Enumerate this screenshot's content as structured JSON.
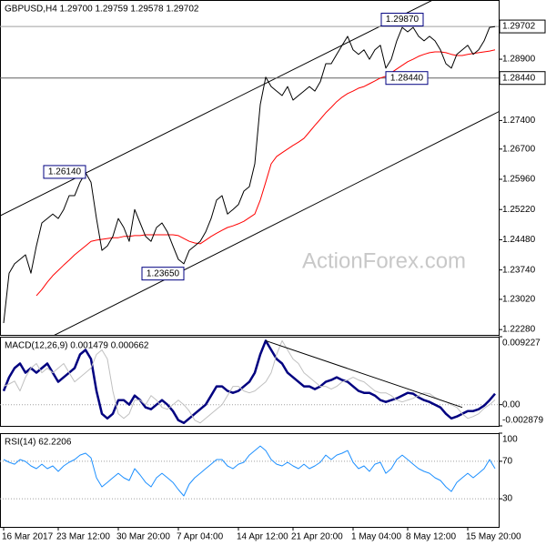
{
  "chart_data": [
    {
      "type": "line",
      "title": "GBPUSD,H4  1.29700 1.29759 1.29578 1.29702",
      "ylim": [
        1.2215,
        1.3035
      ],
      "yticks": [
        {
          "value": 1.289,
          "label": "1.28900"
        },
        {
          "value": 1.274,
          "label": "1.27400"
        },
        {
          "value": 1.267,
          "label": "1.26700"
        },
        {
          "value": 1.2596,
          "label": "1.25960"
        },
        {
          "value": 1.2522,
          "label": "1.25220"
        },
        {
          "value": 1.2448,
          "label": "1.24480"
        },
        {
          "value": 1.2374,
          "label": "1.23740"
        },
        {
          "value": 1.2302,
          "label": "1.23020"
        },
        {
          "value": 1.2228,
          "label": "1.22280"
        }
      ],
      "grid": false,
      "series": [
        {
          "color": "#000000",
          "values": [
            1.2244,
            1.2366,
            1.2389,
            1.24,
            1.2411,
            1.2366,
            1.2433,
            1.2489,
            1.25,
            1.2511,
            1.25,
            1.2522,
            1.2556,
            1.2556,
            1.2589,
            1.2612,
            1.2589,
            1.25,
            1.2422,
            1.2433,
            1.2456,
            1.25,
            1.2478,
            1.2444,
            1.2522,
            1.2489,
            1.2456,
            1.2444,
            1.2478,
            1.2489,
            1.2467,
            1.2433,
            1.24,
            1.2389,
            1.2422,
            1.2433,
            1.2444,
            1.2467,
            1.25,
            1.2545,
            1.2556,
            1.2511,
            1.2522,
            1.2534,
            1.2567,
            1.2578,
            1.2634,
            1.2779,
            1.2846,
            1.2823,
            1.2812,
            1.2801,
            1.2823,
            1.279,
            1.2801,
            1.2812,
            1.2823,
            1.2812,
            1.2835,
            1.2879,
            1.2879,
            1.2902,
            1.2924,
            1.2946,
            1.2913,
            1.2902,
            1.2913,
            1.289,
            1.2913,
            1.2924,
            1.2868,
            1.289,
            1.2935,
            1.2968,
            1.2957,
            1.2968,
            1.2946,
            1.2935,
            1.2946,
            1.2935,
            1.2913,
            1.2879,
            1.2868,
            1.2902,
            1.2913,
            1.2924,
            1.2902,
            1.2913,
            1.2935,
            1.2968,
            1.297
          ]
        },
        {
          "color": "#ff0000",
          "values": [
            null,
            null,
            null,
            null,
            null,
            null,
            1.2311,
            1.2326,
            1.2344,
            1.236,
            1.2373,
            1.2386,
            1.2398,
            1.2411,
            1.2422,
            1.2433,
            1.2444,
            1.2447,
            1.2449,
            1.2451,
            1.2453,
            1.2453,
            1.2456,
            1.2456,
            1.2458,
            1.2458,
            1.246,
            1.246,
            1.246,
            1.246,
            1.246,
            1.246,
            1.2458,
            1.2451,
            1.2444,
            1.244,
            1.2438,
            1.2447,
            1.2456,
            1.2464,
            1.2471,
            1.2478,
            1.2482,
            1.2487,
            1.2493,
            1.2502,
            1.2511,
            1.2545,
            1.2589,
            1.2634,
            1.2652,
            1.2661,
            1.267,
            1.2679,
            1.2687,
            1.2696,
            1.2712,
            1.2728,
            1.2743,
            1.2759,
            1.2772,
            1.2786,
            1.2797,
            1.2806,
            1.2812,
            1.2819,
            1.2823,
            1.283,
            1.2837,
            1.2844,
            1.2848,
            1.2857,
            1.2866,
            1.2875,
            1.2884,
            1.289,
            1.2897,
            1.2902,
            1.2906,
            1.2908,
            1.2908,
            1.2906,
            1.2902,
            1.2899,
            1.2899,
            1.2902,
            1.2904,
            1.2906,
            1.2908,
            1.291,
            1.2913
          ]
        }
      ],
      "price_labels": [
        {
          "value": 1.29702,
          "label": "1.29702",
          "color": "#a0a0a0"
        },
        {
          "value": 1.2844,
          "label": "1.28440",
          "color": "#606060"
        }
      ],
      "annotations": [
        {
          "value": 1.2614,
          "label": "1.26140",
          "index": 15,
          "side": "left"
        },
        {
          "value": 1.2365,
          "label": "1.23650",
          "index": 33,
          "side": "left"
        },
        {
          "value": 1.2987,
          "label": "1.29870",
          "index": 73,
          "side": "center"
        },
        {
          "value": 1.2844,
          "label": "1.28440",
          "index": 70,
          "side": "right"
        }
      ],
      "channel_lines": [
        {
          "from": [
            0,
            1.2511
          ],
          "to": [
            72,
            1.2991
          ]
        },
        {
          "from": [
            10,
            1.2219
          ],
          "to": [
            90,
            1.2757
          ]
        }
      ],
      "watermark": "ActionForex.com"
    },
    {
      "type": "line",
      "title": "MACD(12,26,9) 0.001479 0.000662",
      "ylim": [
        -0.002879,
        0.009227
      ],
      "yticks": [
        0.009227,
        {
          "value": 0,
          "label": "0.00"
        },
        -0.002879
      ],
      "grid": "dotted",
      "series": [
        {
          "color": "#c0c0c0",
          "width": 1,
          "values": [
            0.0025,
            0.0028,
            0.0032,
            0.00186,
            0.00372,
            0.00496,
            0.00558,
            0.00434,
            0.00496,
            0.00434,
            0.00496,
            0.00558,
            0.00434,
            0.0031,
            0.00372,
            0.00434,
            0.00496,
            0.00682,
            0.00744,
            0.0062,
            0.00186,
            -0.00124,
            -0.00186,
            -0.00124,
            0.00062,
            0.00062,
            0,
            0.00124,
            0.00062,
            -0.00037,
            -0.00062,
            0,
            0.00062,
            0,
            -0.00087,
            -0.00211,
            -0.00248,
            -0.00186,
            -0.00124,
            -0.00062,
            0,
            0.00124,
            0.00248,
            0.00248,
            0.00186,
            0.00161,
            0.00186,
            0.00248,
            0.0031,
            0.00434,
            0.00682,
            0.00868,
            0.00744,
            0.0062,
            0.00558,
            0.00434,
            0.00372,
            0.0031,
            0.00248,
            0.00248,
            0.00211,
            0.00248,
            0.0031,
            0.00335,
            0.00372,
            0.00335,
            0.0031,
            0.00248,
            0.00186,
            0.00161,
            0.00161,
            0.00124,
            0.00062,
            0.00037,
            0.00062,
            0.00087,
            0.00124,
            0.00161,
            0.00149,
            0.00099,
            0.00062,
            0.00037,
            0,
            -0.00037,
            -0.00124,
            -0.00186,
            -0.00161,
            -0.00124,
            -0.0005,
            0,
            0.00066
          ]
        },
        {
          "color": "#000080",
          "width": 2.5,
          "values": [
            0.00186,
            0.00372,
            0.00496,
            0.00558,
            0.00434,
            0.00496,
            0.00434,
            0.00496,
            0.00558,
            0.00434,
            0.0031,
            0.00372,
            0.00434,
            0.00496,
            0.00682,
            0.00744,
            0.0062,
            0.00186,
            -0.00124,
            -0.00186,
            -0.00124,
            0.00062,
            0.00062,
            0,
            0.00124,
            0.00062,
            -0.00037,
            -0.00062,
            0,
            0.00062,
            0,
            -0.00087,
            -0.00211,
            -0.00248,
            -0.00186,
            -0.00124,
            -0.00062,
            0,
            0.00124,
            0.00248,
            0.00248,
            0.00186,
            0.00161,
            0.00186,
            0.00248,
            0.0031,
            0.00434,
            0.00682,
            0.00868,
            0.00744,
            0.0062,
            0.00558,
            0.00434,
            0.00372,
            0.0031,
            0.00248,
            0.00248,
            0.00211,
            0.00248,
            0.0031,
            0.00335,
            0.00372,
            0.00335,
            0.0031,
            0.00248,
            0.00186,
            0.00161,
            0.00161,
            0.00124,
            0.00062,
            0.00037,
            0.00062,
            0.00087,
            0.00124,
            0.00161,
            0.00149,
            0.00099,
            0.00062,
            0.00037,
            0,
            -0.00037,
            -0.00124,
            -0.00186,
            -0.00161,
            -0.00124,
            -0.00087,
            -0.00087,
            -0.00062,
            -0.00012,
            0.00062,
            0.00148
          ]
        }
      ],
      "trendlines": [
        {
          "from": [
            48,
            0.00868
          ],
          "to": [
            84,
            -0.00037
          ]
        }
      ]
    },
    {
      "type": "line",
      "title": "RSI(14) 62.2206",
      "ylim": [
        0,
        100
      ],
      "yticks": [
        100,
        70,
        30
      ],
      "grid": "dotted",
      "series": [
        {
          "color": "#1e90ff",
          "width": 1,
          "values": [
            71.8,
            68.9,
            66.9,
            71.8,
            69.8,
            65.0,
            62.1,
            66.9,
            62.1,
            65.0,
            59.2,
            65.0,
            68.9,
            71.8,
            76.6,
            78.6,
            73.7,
            52.4,
            42.7,
            47.5,
            52.4,
            57.2,
            52.4,
            49.5,
            62.1,
            55.3,
            47.5,
            42.7,
            52.4,
            57.2,
            52.4,
            47.5,
            39.8,
            33.0,
            45.6,
            52.4,
            57.2,
            62.1,
            66.9,
            71.8,
            71.8,
            65.0,
            62.1,
            66.9,
            68.9,
            76.6,
            81.5,
            86.3,
            81.5,
            71.8,
            66.9,
            65.0,
            68.9,
            65.0,
            62.1,
            66.9,
            62.1,
            65.0,
            68.9,
            76.6,
            71.8,
            76.6,
            78.6,
            81.5,
            68.9,
            62.1,
            65.0,
            59.2,
            66.9,
            68.9,
            57.2,
            62.1,
            71.8,
            76.6,
            71.8,
            66.9,
            62.1,
            59.2,
            57.2,
            52.4,
            49.5,
            42.7,
            37.8,
            47.5,
            52.4,
            57.2,
            52.4,
            57.2,
            62.1,
            71.8,
            62.2
          ]
        }
      ],
      "categories": [
        "16 Mar 2017",
        null,
        null,
        null,
        null,
        null,
        null,
        null,
        null,
        null,
        "23 Mar 12:00",
        null,
        null,
        null,
        null,
        null,
        null,
        null,
        null,
        null,
        null,
        "30 Mar 20:00",
        null,
        null,
        null,
        null,
        null,
        null,
        null,
        null,
        null,
        null,
        "7 Apr 04:00",
        null,
        null,
        null,
        null,
        null,
        null,
        null,
        null,
        null,
        null,
        "14 Apr 12:00",
        null,
        null,
        null,
        null,
        null,
        null,
        null,
        null,
        null,
        "21 Apr 20:00",
        null,
        null,
        null,
        null,
        null,
        null,
        null,
        null,
        null,
        null,
        "1 May 04:00",
        null,
        null,
        null,
        null,
        null,
        null,
        null,
        null,
        null,
        "8 May 12:00",
        null,
        null,
        null,
        null,
        null,
        null,
        null,
        null,
        null,
        null,
        "15 May 20:00",
        null,
        null,
        null,
        null,
        null
      ]
    }
  ]
}
